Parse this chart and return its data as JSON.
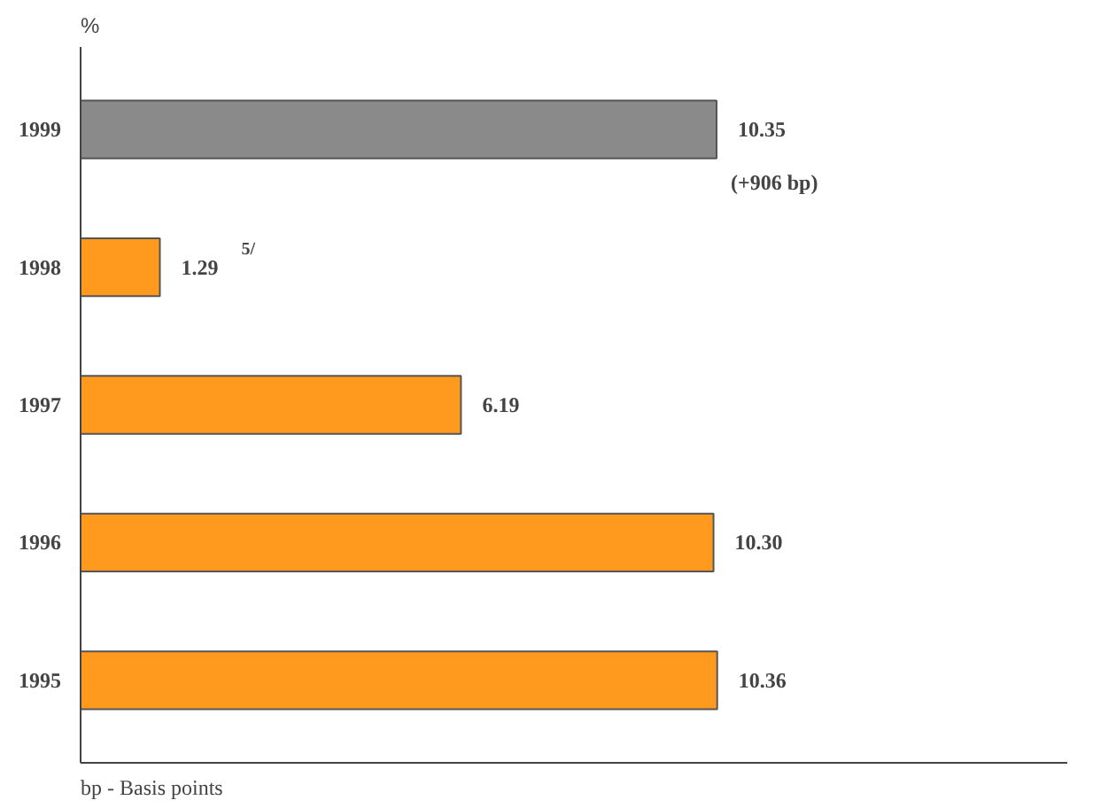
{
  "chart_data": {
    "type": "bar",
    "orientation": "horizontal",
    "title": "%",
    "categories": [
      "1999",
      "1998",
      "1997",
      "1996",
      "1995"
    ],
    "values": [
      10.35,
      1.29,
      6.19,
      10.3,
      10.36
    ],
    "colors": [
      "#8a8a8a",
      "#ff9a1e",
      "#ff9a1e",
      "#ff9a1e",
      "#ff9a1e"
    ],
    "value_labels": [
      "10.35",
      "1.29",
      "6.19",
      "10.30",
      "10.36"
    ],
    "annotations": [
      {
        "text": "(+906 bp)",
        "x": 10.35,
        "y": "1999"
      },
      "5/",
      "bp - Basis points"
    ]
  }
}
